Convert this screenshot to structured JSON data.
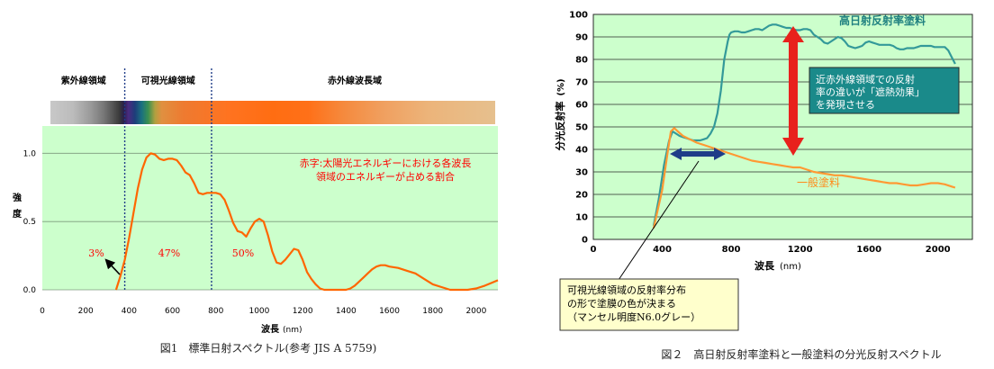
{
  "chart_data": [
    {
      "type": "line",
      "title": "",
      "caption": "図1　標準日射スペクトル(参考 JIS A 5759)",
      "xlabel": "波長",
      "xlabel_unit": "(nm)",
      "ylabel": "強度",
      "xlim": [
        0,
        2100
      ],
      "ylim": [
        0,
        1.2
      ],
      "x_ticks": [
        0,
        200,
        400,
        600,
        800,
        1000,
        1200,
        1400,
        1600,
        1800,
        2000
      ],
      "y_ticks": [
        0.0,
        0.5,
        1.0
      ],
      "y_tick_labels": [
        "0.0",
        "0.5",
        "1.0"
      ],
      "grid": "horizontal",
      "background_color": "#ccffcc",
      "line_color": "#ff6600",
      "band_boundaries": [
        380,
        780
      ],
      "bands": [
        {
          "label": "紫外線領域",
          "share": "3%"
        },
        {
          "label": "可視光線領域",
          "share": "47%"
        },
        {
          "label": "赤外線波長域",
          "share": "50%"
        }
      ],
      "annotation": [
        "赤字:太陽光エネルギーにおける各波長",
        "領域のエネルギーが占める割合"
      ],
      "series": [
        {
          "x": [
            340,
            360,
            380,
            400,
            420,
            440,
            460,
            480,
            500,
            520,
            540,
            560,
            580,
            600,
            620,
            640,
            660,
            680,
            700,
            720,
            740,
            760,
            780,
            800,
            820,
            840,
            860,
            880,
            900,
            920,
            940,
            960,
            980,
            1000,
            1020,
            1040,
            1060,
            1080,
            1100,
            1120,
            1140,
            1160,
            1180,
            1200,
            1220,
            1240,
            1260,
            1280,
            1300,
            1320,
            1340,
            1360,
            1380,
            1400,
            1420,
            1440,
            1460,
            1480,
            1500,
            1520,
            1540,
            1560,
            1580,
            1600,
            1640,
            1680,
            1720,
            1760,
            1780,
            1800,
            1840,
            1880,
            1920,
            1960,
            2000,
            2040,
            2070,
            2100
          ],
          "y": [
            0.0,
            0.1,
            0.22,
            0.38,
            0.56,
            0.74,
            0.88,
            0.97,
            1.0,
            0.99,
            0.96,
            0.95,
            0.96,
            0.96,
            0.95,
            0.91,
            0.86,
            0.84,
            0.78,
            0.71,
            0.7,
            0.71,
            0.71,
            0.71,
            0.7,
            0.66,
            0.58,
            0.49,
            0.43,
            0.42,
            0.39,
            0.45,
            0.5,
            0.52,
            0.5,
            0.4,
            0.28,
            0.2,
            0.19,
            0.22,
            0.26,
            0.3,
            0.29,
            0.22,
            0.13,
            0.08,
            0.04,
            0.01,
            0.0,
            0.0,
            0.0,
            0.0,
            0.0,
            0.0,
            0.01,
            0.03,
            0.06,
            0.09,
            0.12,
            0.15,
            0.17,
            0.18,
            0.18,
            0.17,
            0.16,
            0.14,
            0.12,
            0.08,
            0.06,
            0.04,
            0.02,
            0.0,
            0.0,
            0.0,
            0.01,
            0.03,
            0.05,
            0.07
          ]
        }
      ]
    },
    {
      "type": "line",
      "title": "",
      "caption": "図２　高日射反射率塗料と一般塗料の分光反射スペクトル",
      "xlabel": "波長",
      "xlabel_unit": "(nm)",
      "ylabel": "分光反射率",
      "ylabel_unit": "(%)",
      "xlim": [
        0,
        2200
      ],
      "ylim": [
        0,
        100
      ],
      "x_ticks": [
        0,
        400,
        800,
        1200,
        1600,
        2000
      ],
      "y_ticks": [
        0,
        10,
        20,
        30,
        40,
        50,
        60,
        70,
        80,
        90,
        100
      ],
      "grid": "horizontal",
      "background_color": "#ccffcc",
      "series": [
        {
          "name": "高日射反射率塗料",
          "color": "#339999",
          "x": [
            350,
            380,
            410,
            440,
            460,
            480,
            500,
            520,
            540,
            560,
            580,
            600,
            620,
            640,
            660,
            680,
            700,
            720,
            740,
            760,
            780,
            790,
            800,
            820,
            840,
            860,
            880,
            900,
            920,
            940,
            960,
            980,
            1000,
            1020,
            1040,
            1060,
            1080,
            1100,
            1120,
            1140,
            1160,
            1180,
            1200,
            1220,
            1240,
            1260,
            1280,
            1300,
            1320,
            1340,
            1360,
            1380,
            1400,
            1420,
            1440,
            1460,
            1480,
            1500,
            1520,
            1540,
            1560,
            1580,
            1600,
            1620,
            1640,
            1660,
            1680,
            1700,
            1720,
            1740,
            1760,
            1780,
            1800,
            1820,
            1840,
            1860,
            1880,
            1900,
            1920,
            1940,
            1960,
            1980,
            2000,
            2020,
            2040,
            2060,
            2080,
            2100
          ],
          "y": [
            6,
            18,
            33,
            44,
            48,
            47,
            46,
            45.5,
            45,
            44.5,
            44,
            44,
            44,
            44.5,
            45,
            47,
            50,
            56,
            66,
            80,
            88,
            91,
            92,
            92.5,
            92.5,
            92,
            92,
            92.5,
            93,
            93.5,
            93.5,
            93,
            94,
            95,
            95.5,
            95.5,
            95,
            94.5,
            94,
            94,
            93.5,
            93,
            93,
            93.5,
            93.5,
            93,
            91,
            90,
            89,
            87.5,
            87,
            88,
            89,
            90,
            89.5,
            88,
            86,
            85.5,
            85,
            85.5,
            86,
            87.5,
            88,
            87.5,
            87,
            86.5,
            86.5,
            86.5,
            86.5,
            86,
            85,
            84.5,
            84.5,
            85,
            85,
            85,
            85.5,
            86,
            86,
            86,
            86,
            85.5,
            85.5,
            85.5,
            85.5,
            84,
            81,
            78
          ]
        },
        {
          "name": "一般塗料",
          "color": "#ff9933",
          "x": [
            350,
            400,
            430,
            450,
            470,
            490,
            520,
            560,
            600,
            640,
            680,
            720,
            760,
            800,
            840,
            880,
            920,
            960,
            1000,
            1040,
            1080,
            1120,
            1160,
            1200,
            1240,
            1280,
            1320,
            1360,
            1400,
            1440,
            1480,
            1520,
            1560,
            1600,
            1640,
            1680,
            1720,
            1760,
            1800,
            1840,
            1880,
            1920,
            1960,
            2000,
            2040,
            2080,
            2100
          ],
          "y": [
            5,
            22,
            38,
            48,
            49.5,
            48,
            46,
            44.5,
            43,
            42,
            41,
            40,
            39,
            38,
            37,
            36,
            35,
            34.5,
            34,
            33.5,
            33,
            32.5,
            32,
            32,
            31,
            30,
            29.5,
            29,
            28.5,
            28.5,
            28,
            27.5,
            27,
            26.5,
            26,
            25.5,
            25,
            25,
            24.5,
            24,
            24,
            24.5,
            25,
            25,
            24.5,
            23.5,
            23
          ]
        }
      ],
      "callouts": [
        {
          "text": [
            "近赤外線領域での反射",
            "率の違いが「遮熱効果」",
            "を発現させる"
          ],
          "box_color": "#1a8a8a",
          "text_color": "#ffffff"
        },
        {
          "text": [
            "可視光線領域の反射率分布",
            "の形で塗膜の色が決まる",
            "（マンセル明度N6.0グレー）"
          ],
          "box_color": "#ffffcc",
          "text_color": "#000000"
        }
      ],
      "arrows": [
        {
          "type": "double-vertical",
          "color": "#e8211c",
          "from": 93,
          "to": 33,
          "at_x": 1150
        },
        {
          "type": "double-horizontal",
          "color": "#1f3c88",
          "from": 380,
          "to": 780,
          "at_y": 33
        }
      ]
    }
  ]
}
